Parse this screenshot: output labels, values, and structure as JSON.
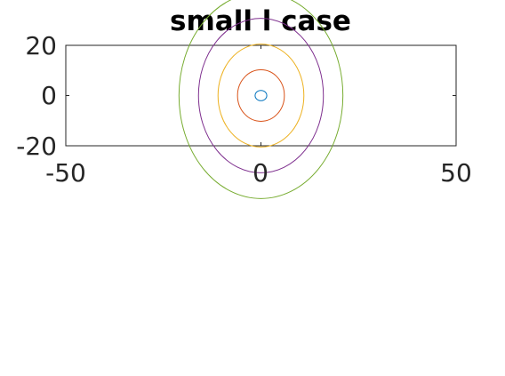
{
  "chart_data": {
    "type": "contour",
    "title": "small l case",
    "xlabel": "",
    "ylabel": "",
    "xlim": [
      -50,
      50
    ],
    "ylim": [
      -20,
      20
    ],
    "x_ticks": [
      -50,
      0,
      50
    ],
    "y_ticks": [
      -20,
      0,
      20
    ],
    "x_tick_labels": [
      "-50",
      "0",
      "50"
    ],
    "y_tick_labels": [
      "-20",
      "0",
      "20"
    ],
    "grid": false,
    "box": true,
    "series": [
      {
        "center": [
          0,
          0
        ],
        "radius_x": 1.5,
        "radius_y": 1,
        "color": "#0072bd"
      },
      {
        "center": [
          0,
          0
        ],
        "radius_x": 6,
        "radius_y": 5,
        "color": "#d95319"
      },
      {
        "center": [
          0,
          0
        ],
        "radius_x": 11,
        "radius_y": 10,
        "color": "#edb120"
      },
      {
        "center": [
          0,
          0
        ],
        "radius_x": 16,
        "radius_y": 15,
        "color": "#7e2f8e"
      },
      {
        "center": [
          0,
          0
        ],
        "radius_x": 21,
        "radius_y": 20,
        "color": "#77ac30"
      }
    ]
  }
}
